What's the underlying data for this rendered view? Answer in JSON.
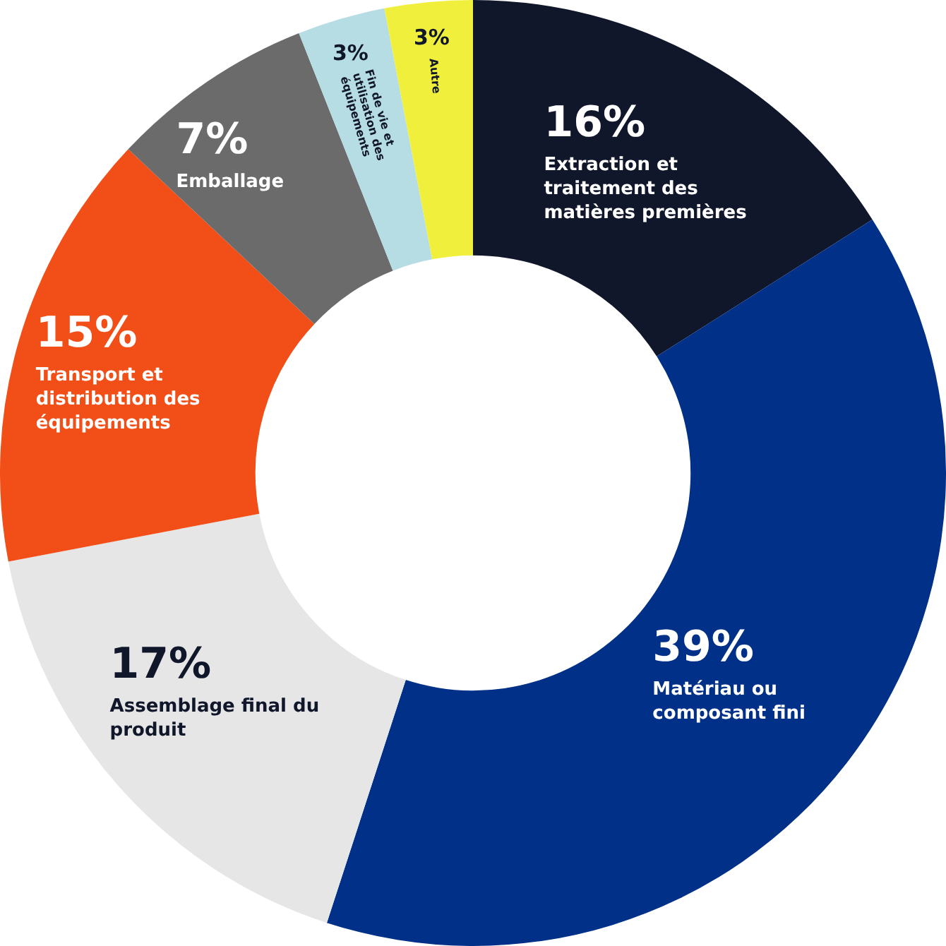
{
  "chart_data": {
    "type": "donut",
    "categories": [
      "Extraction et traitement des matières premières",
      "Matériau ou composant fini",
      "Assemblage final du produit",
      "Transport et distribution des équipements",
      "Emballage",
      "Fin de vie et utilisation des équipements",
      "Autre"
    ],
    "values": [
      16,
      39,
      17,
      15,
      7,
      3,
      3
    ],
    "value_labels": [
      "16%",
      "39%",
      "17%",
      "15%",
      "7%",
      "3%",
      "3%"
    ],
    "colors": [
      "#11172a",
      "#003087",
      "#e6e6e6",
      "#f24e17",
      "#6b6b6b",
      "#b6dde3",
      "#f0f03c"
    ],
    "legend": false
  }
}
